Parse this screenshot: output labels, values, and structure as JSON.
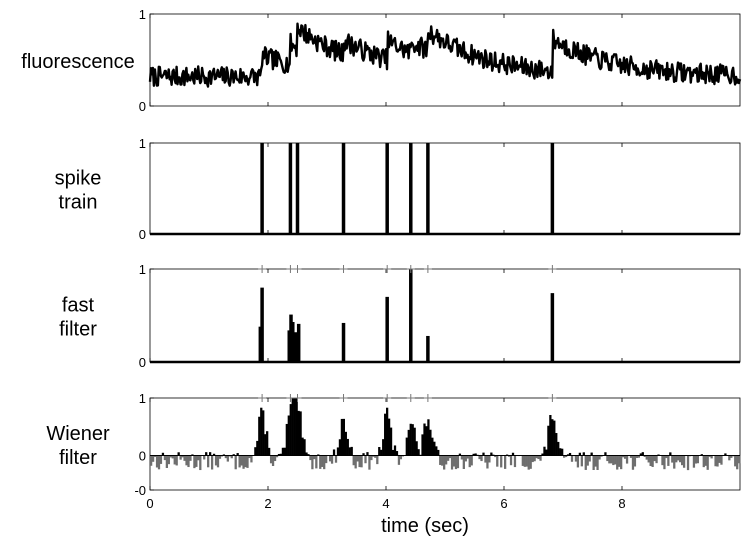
{
  "chart_data": {
    "type": "line",
    "x_range": [
      0,
      10
    ],
    "xlabel": "time (sec)",
    "x_ticks": [
      "0",
      "2",
      "4",
      "6",
      "8"
    ],
    "spike_times": [
      1.9,
      2.38,
      2.5,
      3.28,
      4.02,
      4.42,
      4.71,
      6.82
    ],
    "panels": [
      {
        "label_lines": [
          "fluorescence"
        ],
        "type": "line",
        "ylim": [
          0,
          1
        ],
        "y_ticks": [
          "0",
          "1"
        ],
        "line_color": "#000000",
        "baseline": 0.32,
        "transients": [
          [
            1.9,
            0.22
          ],
          [
            2.38,
            0.22
          ],
          [
            2.5,
            0.22
          ],
          [
            3.28,
            0.15
          ],
          [
            4.02,
            0.2
          ],
          [
            4.42,
            0.12
          ],
          [
            4.71,
            0.22
          ],
          [
            6.82,
            0.35
          ]
        ],
        "decay_sec": 1.0,
        "noise_seed": 7
      },
      {
        "label_lines": [
          "spike",
          "train"
        ],
        "type": "stem",
        "ylim": [
          0,
          1
        ],
        "y_ticks": [
          "0",
          "1"
        ],
        "spikes": [
          [
            1.9,
            1
          ],
          [
            2.38,
            1
          ],
          [
            2.5,
            1
          ],
          [
            3.28,
            1
          ],
          [
            4.02,
            1
          ],
          [
            4.42,
            1
          ],
          [
            4.71,
            1
          ],
          [
            6.82,
            1
          ]
        ]
      },
      {
        "label_lines": [
          "fast",
          "filter"
        ],
        "type": "stem",
        "ylim": [
          0,
          1
        ],
        "y_ticks": [
          "0",
          "1"
        ],
        "plus_marker_row": 1,
        "spikes": [
          [
            1.87,
            0.38
          ],
          [
            1.9,
            0.8
          ],
          [
            2.36,
            0.34
          ],
          [
            2.39,
            0.51
          ],
          [
            2.42,
            0.43
          ],
          [
            2.47,
            0.32
          ],
          [
            2.52,
            0.41
          ],
          [
            3.28,
            0.42
          ],
          [
            4.02,
            0.7
          ],
          [
            4.42,
            1.0
          ],
          [
            4.71,
            0.28
          ],
          [
            6.82,
            0.74
          ]
        ]
      },
      {
        "label_lines": [
          "Wiener",
          "filter"
        ],
        "type": "bar",
        "ylim": [
          -0.6,
          1
        ],
        "y_ticks": [
          "-0",
          "0",
          "1"
        ],
        "y_tick_values": [
          -0.6,
          0,
          1
        ],
        "plus_marker_row": 1,
        "pos_color": "#000000",
        "neg_color": "#6e6e6e",
        "peaks": [
          [
            1.9,
            0.8
          ],
          [
            2.38,
            0.75
          ],
          [
            2.5,
            0.85
          ],
          [
            3.28,
            0.7
          ],
          [
            4.02,
            0.78
          ],
          [
            4.42,
            0.72
          ],
          [
            4.71,
            0.75
          ],
          [
            6.82,
            0.82
          ]
        ],
        "peak_width_sec": 0.1,
        "neg_offset": -0.08,
        "noise_seed": 13
      }
    ]
  }
}
